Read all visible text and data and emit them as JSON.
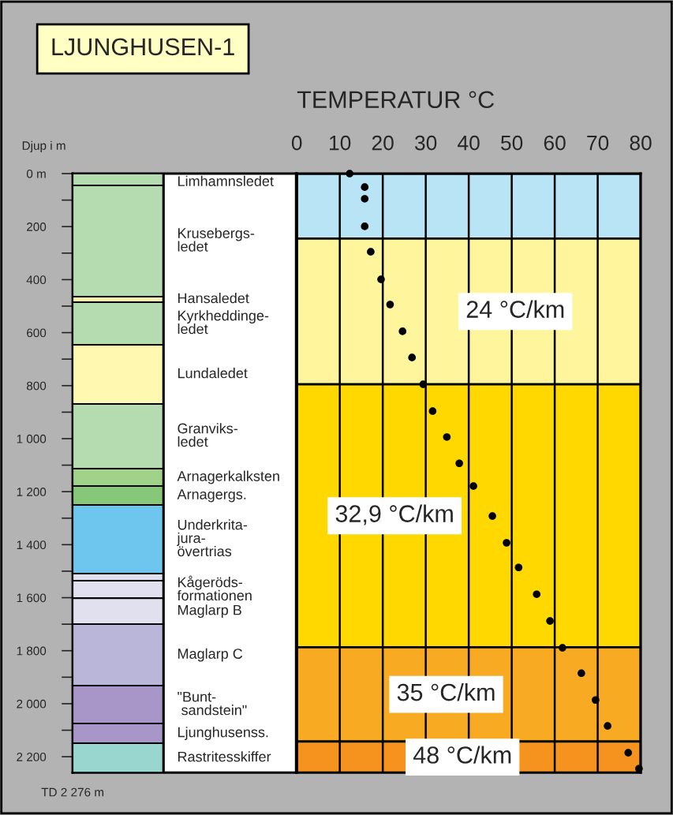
{
  "chart_data": [
    {
      "type": "bar",
      "stacked": true,
      "title": "LJUNGHUSEN-1",
      "ylabel": "Djup i m",
      "categories": [
        null
      ],
      "ylim": [
        2260,
        0
      ],
      "yticks": [
        {
          "value": 0,
          "label": "0 m"
        },
        {
          "value": 100,
          "label": null
        },
        200,
        {
          "value": 300,
          "label": null
        },
        400,
        {
          "value": 500,
          "label": null
        },
        600,
        {
          "value": 700,
          "label": null
        },
        800,
        {
          "value": 900,
          "label": null
        },
        {
          "value": 1000,
          "label": "1 000"
        },
        {
          "value": 1100,
          "label": null
        },
        {
          "value": 1200,
          "label": "1 200"
        },
        {
          "value": 1300,
          "label": null
        },
        {
          "value": 1400,
          "label": "1 400"
        },
        {
          "value": 1500,
          "label": null
        },
        {
          "value": 1600,
          "label": "1 600"
        },
        {
          "value": 1700,
          "label": null
        },
        {
          "value": 1800,
          "label": "1 800"
        },
        {
          "value": 1900,
          "label": null
        },
        {
          "value": 2000,
          "label": "2 000"
        },
        {
          "value": 2100,
          "label": null
        },
        {
          "value": 2200,
          "label": "2 200"
        }
      ],
      "tick_labels": "y",
      "annotations": [
        "TD 2 276 m"
      ],
      "series": [
        {
          "name": "Limhamnsledet",
          "color": "#b5dcb0",
          "values": [
            45
          ]
        },
        {
          "name": "Krusebergs-\nledet",
          "color": "#b5dcb0",
          "values": [
            419
          ]
        },
        {
          "name": "Hansaledet",
          "color": "#fff8b0",
          "values": [
            21
          ]
        },
        {
          "name": "Kyrkheddinge-\nledet",
          "color": "#b5dcb0",
          "values": [
            161
          ]
        },
        {
          "name": "Lundaledet",
          "color": "#fff8b0",
          "values": [
            223
          ]
        },
        {
          "name": "Granviks-\nledet",
          "color": "#b5dcb0",
          "values": [
            244
          ]
        },
        {
          "name": "Arnagerkalksten",
          "color": "#a0d28a",
          "values": [
            66
          ]
        },
        {
          "name": "Arnagergs.",
          "color": "#86c878",
          "values": [
            71
          ]
        },
        {
          "name": "Underkrita-\njura-\növertrias",
          "color": "#6ec6ee",
          "values": [
            259
          ]
        },
        {
          "color": "#e0e0ef",
          "values": [
            27
          ]
        },
        {
          "name": "Kågeröds-\nformationen",
          "color": "#e0e0ef",
          "values": [
            66
          ]
        },
        {
          "name": "Maglarp B",
          "color": "#e0e0ef",
          "values": [
            98
          ]
        },
        {
          "name": "Maglarp C",
          "color": "#bab6da",
          "values": [
            232
          ]
        },
        {
          "name": "\"Bunt-\n sandstein\"",
          "color": "#a896c8",
          "values": [
            143
          ]
        },
        {
          "name": "Ljunghusenss.",
          "color": "#a896c8",
          "values": [
            74
          ]
        },
        {
          "name": "Rastritesskiffer",
          "color": "#98d6cf",
          "values": [
            111
          ]
        }
      ]
    },
    {
      "type": "scatter",
      "xlabel": "TEMPERATUR °C",
      "xlim": [
        0,
        80
      ],
      "xticks": [
        0,
        10,
        20,
        30,
        40,
        50,
        60,
        70,
        80
      ],
      "ylim": [
        2260,
        0
      ],
      "tick_labels": "x",
      "grid": "x",
      "marker": "circle",
      "x": [
        12.3,
        15.8,
        15.8,
        15.8,
        17.2,
        19.6,
        21.7,
        24.6,
        26.8,
        29.4,
        31.6,
        34.9,
        37.8,
        41.1,
        45.5,
        48.8,
        51.6,
        55.8,
        58.9,
        61.8,
        66.2,
        69.5,
        72.3,
        77.1,
        79.6
      ],
      "series": [
        {
          "color": "#000000",
          "values": [
            0,
            51,
            95,
            199,
            295,
            399,
            494,
            595,
            694,
            795,
            896,
            994,
            1093,
            1179,
            1292,
            1393,
            1486,
            1587,
            1688,
            1789,
            1885,
            1986,
            2084,
            2185,
            2245
          ]
        }
      ],
      "bands": [
        {
          "axis": "y",
          "from": 0,
          "to": 245,
          "color": "#b9e4f6"
        },
        {
          "axis": "y",
          "from": 245,
          "to": 795,
          "color": "#fff59d",
          "label": "24 °C/km"
        },
        {
          "axis": "y",
          "from": 795,
          "to": 1787,
          "color": "#ffd800",
          "label": "32,9 °C/km"
        },
        {
          "axis": "y",
          "from": 1787,
          "to": 2143,
          "color": "#f8ab22",
          "label": "35 °C/km"
        },
        {
          "axis": "y",
          "from": 2143,
          "to": 2260,
          "color": "#f6921e",
          "label": "48 °C/km"
        }
      ]
    }
  ]
}
